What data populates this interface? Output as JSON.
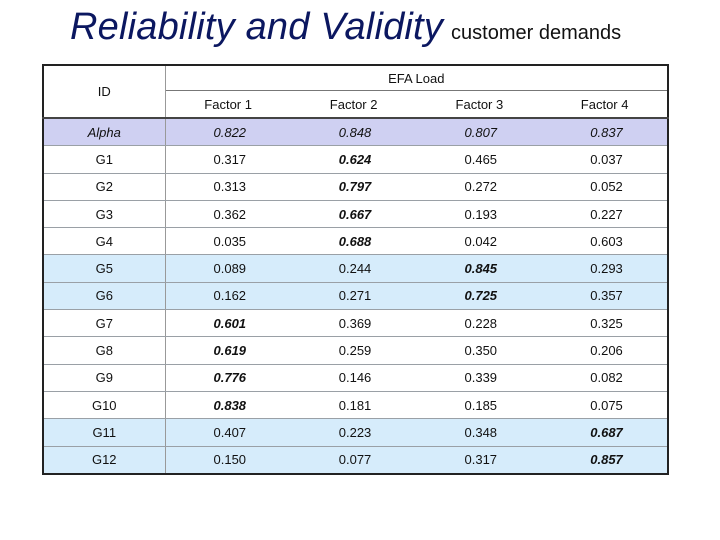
{
  "slide": {
    "title": "Reliability and Validity",
    "subtitle": "customer demands"
  },
  "table": {
    "id_header": "ID",
    "group_header": "EFA Load",
    "factors": [
      "Factor 1",
      "Factor 2",
      "Factor 3",
      "Factor 4"
    ],
    "rows": [
      {
        "id": "Alpha",
        "values": [
          "0.822",
          "0.848",
          "0.807",
          "0.837"
        ],
        "bold": [
          false,
          false,
          false,
          false
        ],
        "style": "alpha"
      },
      {
        "id": "G1",
        "values": [
          "0.317",
          "0.624",
          "0.465",
          "0.037"
        ],
        "bold": [
          false,
          true,
          false,
          false
        ],
        "style": "plain"
      },
      {
        "id": "G2",
        "values": [
          "0.313",
          "0.797",
          "0.272",
          "0.052"
        ],
        "bold": [
          false,
          true,
          false,
          false
        ],
        "style": "plain"
      },
      {
        "id": "G3",
        "values": [
          "0.362",
          "0.667",
          "0.193",
          "0.227"
        ],
        "bold": [
          false,
          true,
          false,
          false
        ],
        "style": "plain"
      },
      {
        "id": "G4",
        "values": [
          "0.035",
          "0.688",
          "0.042",
          "0.603"
        ],
        "bold": [
          false,
          true,
          false,
          false
        ],
        "style": "plain"
      },
      {
        "id": "G5",
        "values": [
          "0.089",
          "0.244",
          "0.845",
          "0.293"
        ],
        "bold": [
          false,
          false,
          true,
          false
        ],
        "style": "highlight"
      },
      {
        "id": "G6",
        "values": [
          "0.162",
          "0.271",
          "0.725",
          "0.357"
        ],
        "bold": [
          false,
          false,
          true,
          false
        ],
        "style": "highlight"
      },
      {
        "id": "G7",
        "values": [
          "0.601",
          "0.369",
          "0.228",
          "0.325"
        ],
        "bold": [
          true,
          false,
          false,
          false
        ],
        "style": "plain"
      },
      {
        "id": "G8",
        "values": [
          "0.619",
          "0.259",
          "0.350",
          "0.206"
        ],
        "bold": [
          true,
          false,
          false,
          false
        ],
        "style": "plain"
      },
      {
        "id": "G9",
        "values": [
          "0.776",
          "0.146",
          "0.339",
          "0.082"
        ],
        "bold": [
          true,
          false,
          false,
          false
        ],
        "style": "plain"
      },
      {
        "id": "G10",
        "values": [
          "0.838",
          "0.181",
          "0.185",
          "0.075"
        ],
        "bold": [
          true,
          false,
          false,
          false
        ],
        "style": "plain"
      },
      {
        "id": "G11",
        "values": [
          "0.407",
          "0.223",
          "0.348",
          "0.687"
        ],
        "bold": [
          false,
          false,
          false,
          true
        ],
        "style": "highlight"
      },
      {
        "id": "G12",
        "values": [
          "0.150",
          "0.077",
          "0.317",
          "0.857"
        ],
        "bold": [
          false,
          false,
          false,
          true
        ],
        "style": "highlight"
      }
    ]
  },
  "colors": {
    "title": "#0b1760",
    "alpha_row": "#cfd0f2",
    "highlight_row": "#d6ecfb"
  }
}
